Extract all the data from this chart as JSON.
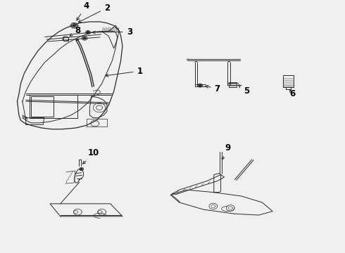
{
  "bg_color": "#f0f0f0",
  "line_color": "#2a2a2a",
  "label_color": "#000000",
  "label_fontsize": 8.5,
  "fig_width": 4.9,
  "fig_height": 3.6,
  "dpi": 100,
  "door_outer": {
    "x": [
      0.05,
      0.06,
      0.08,
      0.1,
      0.13,
      0.16,
      0.18,
      0.2,
      0.22,
      0.24,
      0.26,
      0.28,
      0.3,
      0.32,
      0.335,
      0.34,
      0.34,
      0.33,
      0.32,
      0.3,
      0.28,
      0.26,
      0.23,
      0.19,
      0.14,
      0.1,
      0.07,
      0.055,
      0.05
    ],
    "y": [
      0.52,
      0.57,
      0.63,
      0.68,
      0.73,
      0.77,
      0.8,
      0.83,
      0.855,
      0.875,
      0.89,
      0.9,
      0.905,
      0.905,
      0.9,
      0.88,
      0.82,
      0.76,
      0.7,
      0.64,
      0.58,
      0.535,
      0.51,
      0.495,
      0.485,
      0.49,
      0.495,
      0.505,
      0.52
    ]
  }
}
